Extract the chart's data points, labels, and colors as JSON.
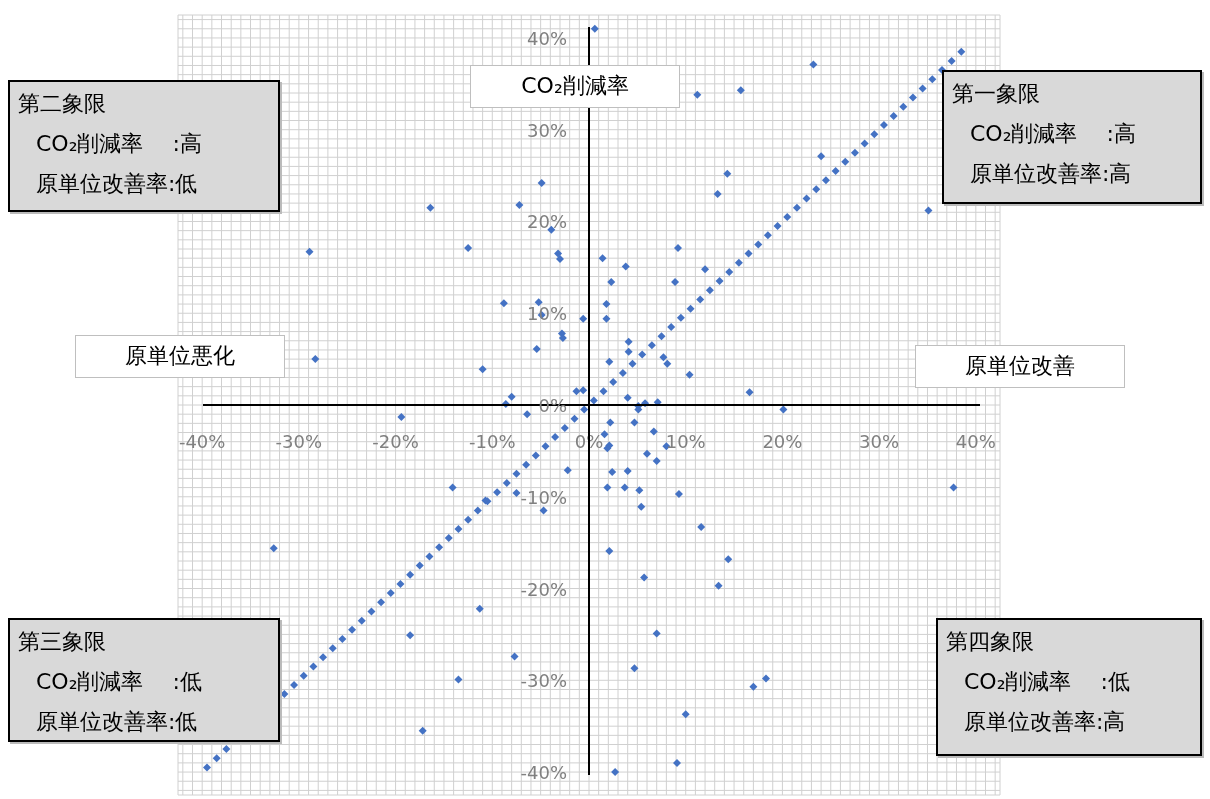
{
  "chart_data": {
    "type": "scatter",
    "xlabel": "原単位改善",
    "ylabel": "CO₂削減率",
    "annotations": [
      "原単位悪化",
      "第二象限",
      "CO₂削減率　 :高",
      "原単位改善率:低",
      "第一象限",
      "CO₂削減率　 :高",
      "原単位改善率:高",
      "第三象限",
      "CO₂削減率　 :低",
      "原単位改善率:低",
      "第四象限",
      "CO₂削減率　 :低",
      "原単位改善率:高"
    ],
    "series": [
      {
        "color": "#4472c4",
        "x": [
          -39.5,
          -38.5,
          -37.5,
          -31.5,
          -30.5,
          -29.5,
          -28.5,
          -27.5,
          -26.5,
          -25.5,
          -24.5,
          -23.5,
          -22.5,
          -21.5,
          -20.5,
          -19.5,
          -18.5,
          -17.5,
          -16.5,
          -15.5,
          -14.5,
          -13.5,
          -12.5,
          -11.5,
          -10.5,
          -9.5,
          -8.5,
          -7.5,
          -6.5,
          -5.5,
          -4.5,
          -3.5,
          -2.5,
          -1.5,
          -0.5,
          0.5,
          1.5,
          2.5,
          3.5,
          4.5,
          5.5,
          6.5,
          7.5,
          8.5,
          9.5,
          10.5,
          11.5,
          12.5,
          13.5,
          14.5,
          15.5,
          16.5,
          17.5,
          18.5,
          19.5,
          20.5,
          21.5,
          22.5,
          23.5,
          24.5,
          25.5,
          26.5,
          27.5,
          28.5,
          29.5,
          30.5,
          31.5,
          32.5,
          33.5,
          34.5,
          35.5,
          36.5,
          37.5,
          38.5,
          0.6,
          23.2,
          11.2,
          15.7,
          13.3,
          14.3,
          24,
          35.1,
          -16.4,
          -7.2,
          -4.9,
          -28.9,
          -12.5,
          -3.9,
          -3.2,
          -3,
          1.4,
          3.8,
          9.2,
          2.3,
          -8.8,
          -5.2,
          -4.9,
          1.8,
          1.8,
          -0.6,
          -2.8,
          -2.7,
          -5.4,
          8.9,
          12,
          4.1,
          4.1,
          2.1,
          -11,
          -28.3,
          10.4,
          16.6,
          7.7,
          8.1,
          -1.3,
          -0.6,
          -8,
          -8.6,
          -19.4,
          -6.4,
          20.1,
          4,
          5.1,
          5.8,
          7.1,
          2.2,
          4.7,
          5.1,
          6.7,
          8,
          7,
          6,
          2.1,
          1.9,
          2.4,
          4,
          -2.2,
          1.9,
          3.7,
          5.2,
          9.3,
          5.4,
          -4.7,
          -7.5,
          -14.1,
          -10.7,
          11.6,
          2.1,
          14.4,
          -32.6,
          -11.3,
          5.7,
          13.4,
          7,
          -18.5,
          -7.7,
          -13.5,
          4.7,
          18.3,
          17,
          10,
          -17.2,
          9.1,
          2.7,
          37.7,
          1.6
        ],
        "values": [
          -39.5,
          -38.5,
          -37.5,
          -31.5,
          -30.5,
          -29.5,
          -28.5,
          -27.5,
          -26.5,
          -25.5,
          -24.5,
          -23.5,
          -22.5,
          -21.5,
          -20.5,
          -19.5,
          -18.5,
          -17.5,
          -16.5,
          -15.5,
          -14.5,
          -13.5,
          -12.5,
          -11.5,
          -10.5,
          -9.5,
          -8.5,
          -7.5,
          -6.5,
          -5.5,
          -4.5,
          -3.5,
          -2.5,
          -1.5,
          -0.5,
          0.5,
          1.5,
          2.5,
          3.5,
          4.5,
          5.5,
          6.5,
          7.5,
          8.5,
          9.5,
          10.5,
          11.5,
          12.5,
          13.5,
          14.5,
          15.5,
          16.5,
          17.5,
          18.5,
          19.5,
          20.5,
          21.5,
          22.5,
          23.5,
          24.5,
          25.5,
          26.5,
          27.5,
          28.5,
          29.5,
          30.5,
          31.5,
          32.5,
          33.5,
          34.5,
          35.5,
          36.5,
          37.5,
          38.5,
          41,
          37.1,
          33.8,
          34.3,
          23,
          25.2,
          27.1,
          21.2,
          21.5,
          21.8,
          24.2,
          16.7,
          17.1,
          19.1,
          16.5,
          15.9,
          16,
          15.1,
          17.1,
          13.4,
          11.1,
          11.2,
          9.8,
          11,
          9.4,
          9.4,
          7.8,
          7.3,
          6.1,
          13.4,
          14.8,
          6.9,
          5.8,
          4.7,
          3.9,
          5,
          3.3,
          1.4,
          5.2,
          4.5,
          1.5,
          1.6,
          0.9,
          0.1,
          -1.3,
          -1,
          -0.5,
          0.8,
          -0.1,
          0.2,
          0.3,
          -1.9,
          -1.9,
          -0.5,
          -2.9,
          -4.5,
          -6.1,
          -5.3,
          -4.4,
          -4.7,
          -7.3,
          -7.2,
          -7.1,
          -9,
          -9,
          -9.3,
          -9.7,
          -11.1,
          -11.5,
          -9.6,
          -9,
          -10.4,
          -13.3,
          -15.9,
          -16.8,
          -15.6,
          -22.2,
          -18.8,
          -19.7,
          -24.9,
          -25.1,
          -27.4,
          -29.9,
          -28.7,
          -29.8,
          -30.7,
          -33.7,
          -35.5,
          -39,
          -40,
          -9,
          -3.2
        ]
      }
    ],
    "marker": "diamond",
    "grid": true,
    "xlim": [
      -42.5,
      42.5
    ],
    "ylim": [
      -42.5,
      42.5
    ],
    "xticks": [
      {
        "value": -42,
        "label": null
      },
      {
        "value": -41,
        "label": null
      },
      {
        "value": -40,
        "label": "-40%"
      },
      {
        "value": -39,
        "label": null
      },
      {
        "value": -38,
        "label": null
      },
      {
        "value": -37,
        "label": null
      },
      {
        "value": -36,
        "label": null
      },
      {
        "value": -35,
        "label": null
      },
      {
        "value": -34,
        "label": null
      },
      {
        "value": -33,
        "label": null
      },
      {
        "value": -32,
        "label": null
      },
      {
        "value": -31,
        "label": null
      },
      {
        "value": -30,
        "label": "-30%"
      },
      {
        "value": -29,
        "label": null
      },
      {
        "value": -28,
        "label": null
      },
      {
        "value": -27,
        "label": null
      },
      {
        "value": -26,
        "label": null
      },
      {
        "value": -25,
        "label": null
      },
      {
        "value": -24,
        "label": null
      },
      {
        "value": -23,
        "label": null
      },
      {
        "value": -22,
        "label": null
      },
      {
        "value": -21,
        "label": null
      },
      {
        "value": -20,
        "label": "-20%"
      },
      {
        "value": -19,
        "label": null
      },
      {
        "value": -18,
        "label": null
      },
      {
        "value": -17,
        "label": null
      },
      {
        "value": -16,
        "label": null
      },
      {
        "value": -15,
        "label": null
      },
      {
        "value": -14,
        "label": null
      },
      {
        "value": -13,
        "label": null
      },
      {
        "value": -12,
        "label": null
      },
      {
        "value": -11,
        "label": null
      },
      {
        "value": -10,
        "label": "-10%"
      },
      {
        "value": -9,
        "label": null
      },
      {
        "value": -8,
        "label": null
      },
      {
        "value": -7,
        "label": null
      },
      {
        "value": -6,
        "label": null
      },
      {
        "value": -5,
        "label": null
      },
      {
        "value": -4,
        "label": null
      },
      {
        "value": -3,
        "label": null
      },
      {
        "value": -2,
        "label": null
      },
      {
        "value": -1,
        "label": null
      },
      {
        "value": 0,
        "label": "0%"
      },
      {
        "value": 1,
        "label": null
      },
      {
        "value": 2,
        "label": null
      },
      {
        "value": 3,
        "label": null
      },
      {
        "value": 4,
        "label": null
      },
      {
        "value": 5,
        "label": null
      },
      {
        "value": 6,
        "label": null
      },
      {
        "value": 7,
        "label": null
      },
      {
        "value": 8,
        "label": null
      },
      {
        "value": 9,
        "label": null
      },
      {
        "value": 10,
        "label": "10%"
      },
      {
        "value": 11,
        "label": null
      },
      {
        "value": 12,
        "label": null
      },
      {
        "value": 13,
        "label": null
      },
      {
        "value": 14,
        "label": null
      },
      {
        "value": 15,
        "label": null
      },
      {
        "value": 16,
        "label": null
      },
      {
        "value": 17,
        "label": null
      },
      {
        "value": 18,
        "label": null
      },
      {
        "value": 19,
        "label": null
      },
      {
        "value": 20,
        "label": "20%"
      },
      {
        "value": 21,
        "label": null
      },
      {
        "value": 22,
        "label": null
      },
      {
        "value": 23,
        "label": null
      },
      {
        "value": 24,
        "label": null
      },
      {
        "value": 25,
        "label": null
      },
      {
        "value": 26,
        "label": null
      },
      {
        "value": 27,
        "label": null
      },
      {
        "value": 28,
        "label": null
      },
      {
        "value": 29,
        "label": null
      },
      {
        "value": 30,
        "label": "30%"
      },
      {
        "value": 31,
        "label": null
      },
      {
        "value": 32,
        "label": null
      },
      {
        "value": 33,
        "label": null
      },
      {
        "value": 34,
        "label": null
      },
      {
        "value": 35,
        "label": null
      },
      {
        "value": 36,
        "label": null
      },
      {
        "value": 37,
        "label": null
      },
      {
        "value": 38,
        "label": null
      },
      {
        "value": 39,
        "label": null
      },
      {
        "value": 40,
        "label": "40%"
      },
      {
        "value": 41,
        "label": null
      },
      {
        "value": 42,
        "label": null
      }
    ],
    "yticks": [
      {
        "value": -42,
        "label": null
      },
      {
        "value": -41,
        "label": null
      },
      {
        "value": -40,
        "label": "-40%"
      },
      {
        "value": -39,
        "label": null
      },
      {
        "value": -38,
        "label": null
      },
      {
        "value": -37,
        "label": null
      },
      {
        "value": -36,
        "label": null
      },
      {
        "value": -35,
        "label": null
      },
      {
        "value": -34,
        "label": null
      },
      {
        "value": -33,
        "label": null
      },
      {
        "value": -32,
        "label": null
      },
      {
        "value": -31,
        "label": null
      },
      {
        "value": -30,
        "label": "-30%"
      },
      {
        "value": -29,
        "label": null
      },
      {
        "value": -28,
        "label": null
      },
      {
        "value": -27,
        "label": null
      },
      {
        "value": -26,
        "label": null
      },
      {
        "value": -25,
        "label": null
      },
      {
        "value": -24,
        "label": null
      },
      {
        "value": -23,
        "label": null
      },
      {
        "value": -22,
        "label": null
      },
      {
        "value": -21,
        "label": null
      },
      {
        "value": -20,
        "label": "-20%"
      },
      {
        "value": -19,
        "label": null
      },
      {
        "value": -18,
        "label": null
      },
      {
        "value": -17,
        "label": null
      },
      {
        "value": -16,
        "label": null
      },
      {
        "value": -15,
        "label": null
      },
      {
        "value": -14,
        "label": null
      },
      {
        "value": -13,
        "label": null
      },
      {
        "value": -12,
        "label": null
      },
      {
        "value": -11,
        "label": null
      },
      {
        "value": -10,
        "label": "-10%"
      },
      {
        "value": -9,
        "label": null
      },
      {
        "value": -8,
        "label": null
      },
      {
        "value": -7,
        "label": null
      },
      {
        "value": -6,
        "label": null
      },
      {
        "value": -5,
        "label": null
      },
      {
        "value": -4,
        "label": null
      },
      {
        "value": -3,
        "label": null
      },
      {
        "value": -2,
        "label": null
      },
      {
        "value": -1,
        "label": null
      },
      {
        "value": 0,
        "label": "0%"
      },
      {
        "value": 1,
        "label": null
      },
      {
        "value": 2,
        "label": null
      },
      {
        "value": 3,
        "label": null
      },
      {
        "value": 4,
        "label": null
      },
      {
        "value": 5,
        "label": null
      },
      {
        "value": 6,
        "label": null
      },
      {
        "value": 7,
        "label": null
      },
      {
        "value": 8,
        "label": null
      },
      {
        "value": 9,
        "label": null
      },
      {
        "value": 10,
        "label": "10%"
      },
      {
        "value": 11,
        "label": null
      },
      {
        "value": 12,
        "label": null
      },
      {
        "value": 13,
        "label": null
      },
      {
        "value": 14,
        "label": null
      },
      {
        "value": 15,
        "label": null
      },
      {
        "value": 16,
        "label": null
      },
      {
        "value": 17,
        "label": null
      },
      {
        "value": 18,
        "label": null
      },
      {
        "value": 19,
        "label": null
      },
      {
        "value": 20,
        "label": "20%"
      },
      {
        "value": 21,
        "label": null
      },
      {
        "value": 22,
        "label": null
      },
      {
        "value": 23,
        "label": null
      },
      {
        "value": 24,
        "label": null
      },
      {
        "value": 25,
        "label": null
      },
      {
        "value": 26,
        "label": null
      },
      {
        "value": 27,
        "label": null
      },
      {
        "value": 28,
        "label": null
      },
      {
        "value": 29,
        "label": null
      },
      {
        "value": 30,
        "label": "30%"
      },
      {
        "value": 31,
        "label": null
      },
      {
        "value": 32,
        "label": null
      },
      {
        "value": 33,
        "label": null
      },
      {
        "value": 34,
        "label": null
      },
      {
        "value": 35,
        "label": null
      },
      {
        "value": 36,
        "label": null
      },
      {
        "value": 37,
        "label": null
      },
      {
        "value": 38,
        "label": null
      },
      {
        "value": 39,
        "label": null
      },
      {
        "value": 40,
        "label": "40%"
      },
      {
        "value": 41,
        "label": null
      },
      {
        "value": 42,
        "label": null
      }
    ]
  }
}
